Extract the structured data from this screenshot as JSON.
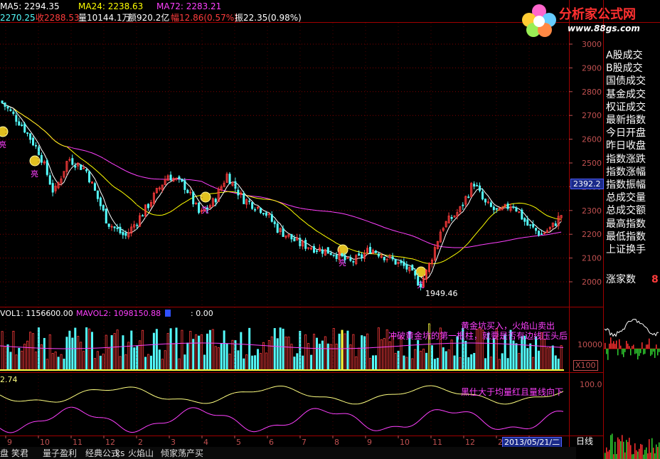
{
  "header": {
    "ma5_label": "MA5: 2294.35",
    "ma24_label": "MA24: 2238.63",
    "ma72_label": "MA72: 2283.21",
    "row2_open": "2270.25",
    "row2_close": "收2288.53",
    "row2_volume": "量10144.1万",
    "row2_amount": "额920.2亿",
    "row2_change": "幅12.86(0.57%)",
    "row2_amplitude": "振22.35(0.98%)"
  },
  "logo": {
    "title": "分析家公式网",
    "url": "www.88gs.com"
  },
  "sidebar": {
    "items": [
      "A股成交",
      "B股成交",
      "国债成交",
      "基金成交",
      "权证成交",
      "最新指数",
      "今日开盘",
      "昨日收盘",
      "指数涨跌",
      "指数涨幅",
      "指数振幅",
      "总成交量",
      "总成交额",
      "最高指数",
      "最低指数",
      "上证换手"
    ],
    "risers_label": "涨家数",
    "risers_value": "8"
  },
  "chart_data": [
    {
      "type": "candlestick",
      "panel": "price",
      "ylim": [
        1900,
        3020
      ],
      "yticks": [
        2000,
        2100,
        2200,
        2300,
        2400,
        2500,
        2600,
        2700,
        2800,
        2900,
        3000
      ],
      "current_price_label": "2392.2",
      "low_annotation": "1949.46",
      "signal_mark": "亮",
      "series": [
        {
          "name": "MA5",
          "color": "#ffffff"
        },
        {
          "name": "MA24",
          "color": "#ffff00"
        },
        {
          "name": "MA72",
          "color": "#ff40ff"
        }
      ]
    },
    {
      "type": "bar",
      "panel": "volume",
      "vol1_label": "VOL1: 1156600.00",
      "mavol2_label": "MAVOL2: 1098150.88",
      "extra_label": ": 0.00",
      "ytick_label": "10000",
      "unit_label": "X100",
      "annotations": [
        "黄金坑买入，火焰山卖出",
        "冲破黄金坑的第一根柱，就要是否有边线压头后"
      ]
    },
    {
      "type": "line",
      "panel": "indicator",
      "value_label": "2.74",
      "ytick_label": "100.0",
      "annotation": "黑仕大于均量红且量线向下",
      "series": [
        {
          "name": "yellow",
          "color": "#ffff80"
        },
        {
          "name": "magenta",
          "color": "#ff40ff"
        }
      ]
    }
  ],
  "xaxis": {
    "labels": [
      "9",
      "10",
      "11",
      "12",
      "2",
      "3",
      "4",
      "5",
      "6",
      "7",
      "8",
      "9",
      "10",
      "11",
      "12",
      "2",
      "3"
    ],
    "date_box": "2013/05/21/二",
    "period_label": "日线"
  },
  "tabs": [
    "盘",
    "笑君",
    "量子盈利",
    "经典公式",
    "xs",
    "火焰山",
    "倾家荡产买"
  ],
  "colors": {
    "up": "#ff3c3c",
    "down": "#54fcfc",
    "grid": "#800000",
    "axis_text": "#c05050"
  }
}
